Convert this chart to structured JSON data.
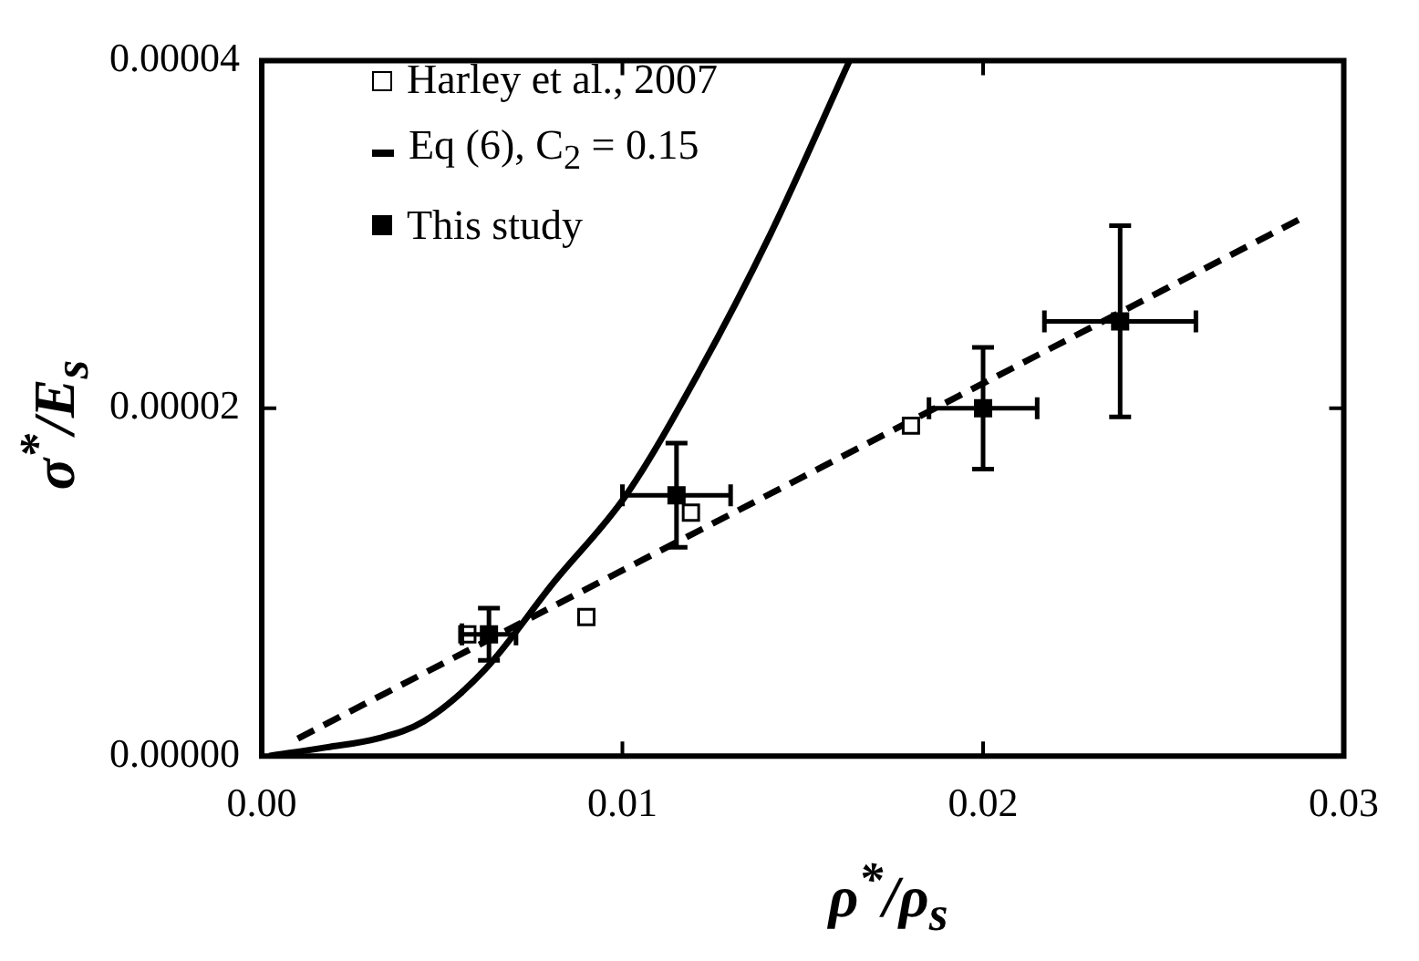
{
  "chart_data": {
    "type": "scatter",
    "xlabel": "ρ$^{*}$/ρ$_{s}$",
    "ylabel": "σ$^{*}$/E$_{s}$",
    "xlim": [
      0,
      0.03
    ],
    "ylim": [
      0,
      4e-05
    ],
    "xticks": [
      {
        "value": 0,
        "label": "0.00"
      },
      {
        "value": 0.01,
        "label": "0.01"
      },
      {
        "value": 0.02,
        "label": "0.02"
      },
      {
        "value": 0.03,
        "label": "0.03"
      }
    ],
    "yticks": [
      {
        "value": 0,
        "label": "0.00000"
      },
      {
        "value": 2e-05,
        "label": "0.00002"
      },
      {
        "value": 4e-05,
        "label": "0.00004"
      }
    ],
    "grid": false,
    "legend": "top left",
    "series": [
      {
        "name": "Harley et al., 2007",
        "type": "scatter",
        "marker": "square",
        "color": "#ffffff",
        "x": [
          0.0057,
          0.009,
          0.0119,
          0.018
        ],
        "values": [
          7e-06,
          8e-06,
          1.4e-05,
          1.9e-05
        ]
      },
      {
        "name": "Eq (6), C$_{2}$ = 0.15",
        "type": "line",
        "marker": "none",
        "line_style": "dashed",
        "color": "#000000",
        "x": [
          0.001,
          0.0289
        ],
        "values": [
          1e-06,
          3.1e-05
        ]
      },
      {
        "name": "This study",
        "type": "scatter",
        "marker": "square",
        "color": "#000000",
        "x": [
          0.0063,
          0.0115,
          0.02,
          0.0238
        ],
        "values": [
          7e-06,
          1.5e-05,
          2e-05,
          2.5e-05
        ],
        "errors": [
          1.5e-06,
          3e-06,
          3.5e-06,
          5.5e-06
        ],
        "xerrors": [
          0.00075,
          0.0015,
          0.0015,
          0.0021
        ]
      },
      {
        "type": "line",
        "marker": "none",
        "line_style": "solid",
        "color": "#000000",
        "x": [
          0.0002,
          0.0018,
          0.0032,
          0.0045,
          0.0062,
          0.0081,
          0.0101,
          0.0121,
          0.0141,
          0.0163
        ],
        "values": [
          0,
          5e-07,
          1e-06,
          2e-06,
          5e-06,
          1e-05,
          1.5e-05,
          2.2e-05,
          3e-05,
          4e-05
        ]
      }
    ]
  }
}
